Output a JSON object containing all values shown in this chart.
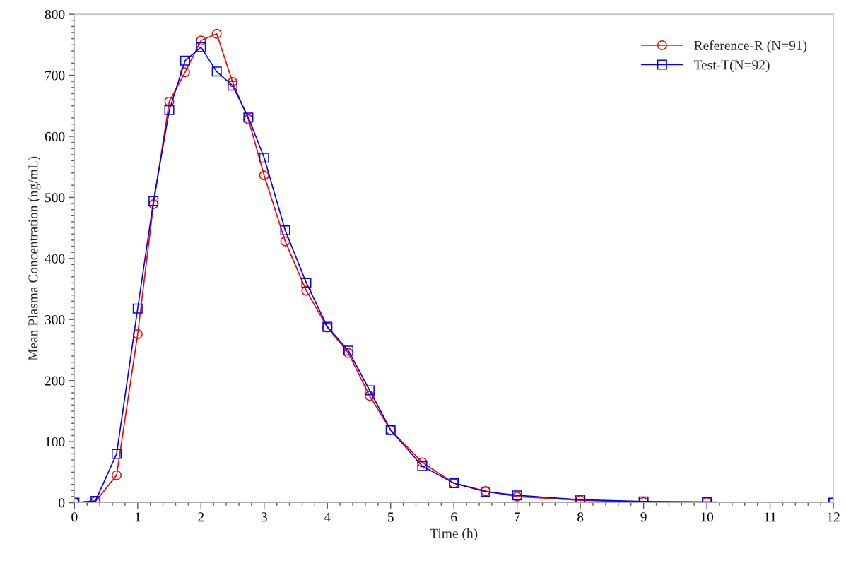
{
  "chart_data": {
    "type": "line",
    "xlabel": "Time (h)",
    "ylabel": "Mean Plasma Concentration (ng/mL)",
    "x": [
      0,
      0.333,
      0.667,
      1,
      1.25,
      1.5,
      1.75,
      2,
      2.25,
      2.5,
      2.75,
      3,
      3.333,
      3.667,
      4,
      4.333,
      4.667,
      5,
      5.5,
      6,
      6.5,
      7,
      8,
      9,
      10,
      12
    ],
    "series": [
      {
        "name": "Reference-R (N=91)",
        "color": "#ff0000",
        "marker": "circle",
        "values": [
          0,
          2,
          45,
          276,
          489,
          657,
          705,
          757,
          768,
          689,
          628,
          536,
          428,
          347,
          287,
          245,
          175,
          119,
          66,
          32,
          19,
          10,
          4,
          1,
          1,
          0
        ]
      },
      {
        "name": "Test-T(N=92)",
        "color": "#0000ff",
        "marker": "square",
        "values": [
          0,
          3,
          80,
          318,
          494,
          643,
          724,
          746,
          706,
          683,
          631,
          565,
          446,
          360,
          288,
          249,
          184,
          119,
          60,
          32,
          18,
          12,
          5,
          2,
          1,
          0
        ]
      }
    ],
    "xlim": [
      0,
      12
    ],
    "xticks": [
      0,
      1,
      2,
      3,
      4,
      5,
      6,
      7,
      8,
      9,
      10,
      11,
      12
    ],
    "ylim": [
      0,
      800
    ],
    "yticks": [
      0,
      100,
      200,
      300,
      400,
      500,
      600,
      700,
      800
    ],
    "grid": false,
    "legend": "top right",
    "line_style": "solid"
  }
}
